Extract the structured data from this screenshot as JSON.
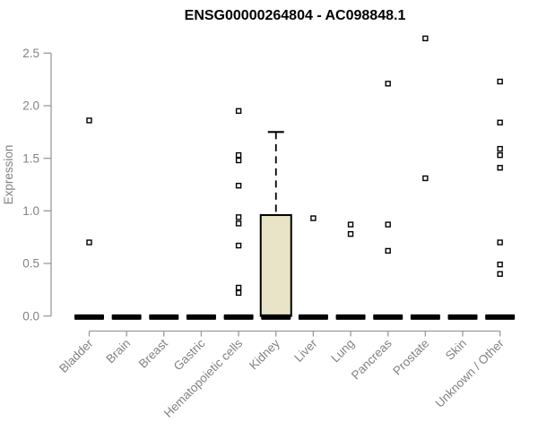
{
  "chart_data": {
    "type": "boxplot",
    "title": "ENSG00000264804 - AC098848.1",
    "ylabel": "Expression",
    "xlabel": "",
    "ylim": [
      0,
      2.65
    ],
    "yticks": [
      0,
      0.5,
      1,
      1.5,
      2,
      2.5
    ],
    "ytick_labels": [
      "0.0",
      "0.5",
      "1.0",
      "1.5",
      "2.0",
      "2.5"
    ],
    "grid": false,
    "legend": null,
    "categories": [
      "Bladder",
      "Brain",
      "Breast",
      "Gastric",
      "Hematopoietic cells",
      "Kidney",
      "Liver",
      "Lung",
      "Pancreas",
      "Prostate",
      "Skin",
      "Unknown / Other"
    ],
    "boxes": [
      {
        "category": "Bladder",
        "q1": 0,
        "median": 0,
        "q3": 0,
        "whisker_low": 0,
        "whisker_high": 0,
        "outliers": [
          1.86,
          0.7
        ]
      },
      {
        "category": "Brain",
        "q1": 0,
        "median": 0,
        "q3": 0,
        "whisker_low": 0,
        "whisker_high": 0,
        "outliers": []
      },
      {
        "category": "Breast",
        "q1": 0,
        "median": 0,
        "q3": 0,
        "whisker_low": 0,
        "whisker_high": 0,
        "outliers": []
      },
      {
        "category": "Gastric",
        "q1": 0,
        "median": 0,
        "q3": 0,
        "whisker_low": 0,
        "whisker_high": 0,
        "outliers": []
      },
      {
        "category": "Hematopoietic cells",
        "q1": 0,
        "median": 0,
        "q3": 0,
        "whisker_low": 0,
        "whisker_high": 0,
        "outliers": [
          1.95,
          1.53,
          1.48,
          1.24,
          0.94,
          0.88,
          0.67,
          0.27,
          0.22
        ]
      },
      {
        "category": "Kidney",
        "q1": 0,
        "median": 0,
        "q3": 0.96,
        "whisker_low": 0,
        "whisker_high": 1.75,
        "outliers": []
      },
      {
        "category": "Liver",
        "q1": 0,
        "median": 0,
        "q3": 0,
        "whisker_low": 0,
        "whisker_high": 0,
        "outliers": [
          0.93
        ]
      },
      {
        "category": "Lung",
        "q1": 0,
        "median": 0,
        "q3": 0,
        "whisker_low": 0,
        "whisker_high": 0,
        "outliers": [
          0.87,
          0.78
        ]
      },
      {
        "category": "Pancreas",
        "q1": 0,
        "median": 0,
        "q3": 0,
        "whisker_low": 0,
        "whisker_high": 0,
        "outliers": [
          2.21,
          0.87,
          0.62
        ]
      },
      {
        "category": "Prostate",
        "q1": 0,
        "median": 0,
        "q3": 0,
        "whisker_low": 0,
        "whisker_high": 0,
        "outliers": [
          2.64,
          1.31
        ]
      },
      {
        "category": "Skin",
        "q1": 0,
        "median": 0,
        "q3": 0,
        "whisker_low": 0,
        "whisker_high": 0,
        "outliers": []
      },
      {
        "category": "Unknown / Other",
        "q1": 0,
        "median": 0,
        "q3": 0,
        "whisker_low": 0,
        "whisker_high": 0,
        "outliers": [
          2.23,
          1.84,
          1.59,
          1.53,
          1.41,
          0.7,
          0.49,
          0.4
        ]
      }
    ],
    "colors": {
      "box_fill": "#E9E3C8",
      "box_stroke": "#000000",
      "marker": "#000000",
      "marker_fill": "#ffffff",
      "axis": "#9a9a9a",
      "text": "#828282",
      "title": "#000000",
      "background": "#ffffff"
    }
  }
}
